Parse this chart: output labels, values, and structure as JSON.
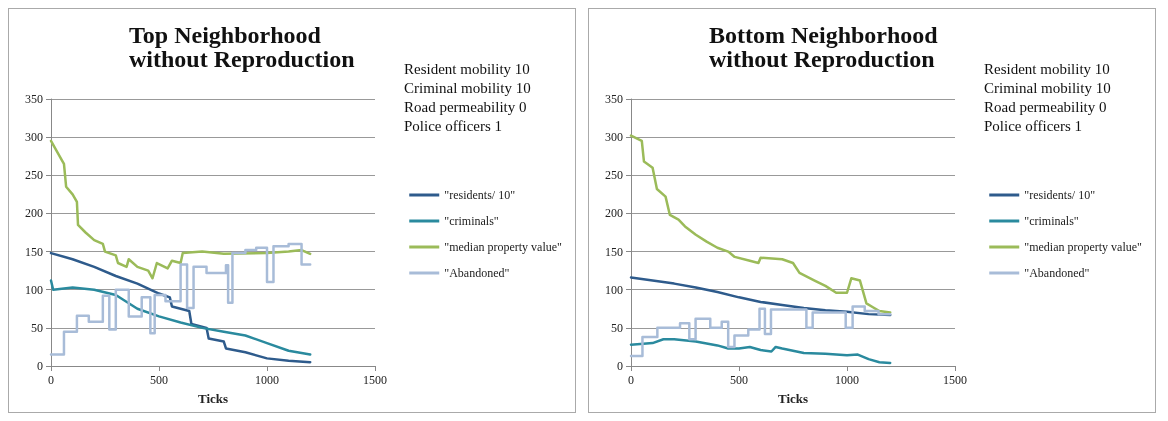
{
  "chart_data": [
    {
      "type": "line",
      "title": "Top Neighborhood  without Reproduction",
      "xlabel": "Ticks",
      "annotations": [
        "Resident mobility 10",
        "Criminal mobility 10",
        "Road permeability 0",
        "Police officers 1"
      ],
      "xlim": [
        0,
        1500
      ],
      "xticks": [
        0,
        500,
        1000,
        1500
      ],
      "ylim": [
        0,
        350
      ],
      "yticks": [
        0,
        50,
        100,
        150,
        200,
        250,
        300,
        350
      ],
      "grid": "y",
      "legend": "right",
      "marker": "none",
      "line_style": "solid",
      "series": [
        {
          "name": "\"residents/ 10\"",
          "color": "#2e5b8c",
          "x": [
            0,
            100,
            200,
            300,
            400,
            500,
            550,
            560,
            640,
            650,
            720,
            730,
            800,
            810,
            900,
            1000,
            1100,
            1200
          ],
          "values": [
            148,
            140,
            130,
            118,
            108,
            95,
            90,
            78,
            72,
            55,
            50,
            36,
            32,
            23,
            18,
            10,
            7,
            5
          ]
        },
        {
          "name": "\"criminals\"",
          "color": "#2a8a9e",
          "x": [
            0,
            10,
            100,
            200,
            300,
            400,
            500,
            600,
            700,
            800,
            900,
            1000,
            1100,
            1200
          ],
          "values": [
            112,
            100,
            103,
            100,
            93,
            75,
            65,
            57,
            50,
            45,
            40,
            30,
            20,
            15
          ]
        },
        {
          "name": "\"median property value\"",
          "color": "#9bbb59",
          "x": [
            0,
            50,
            60,
            70,
            100,
            120,
            125,
            160,
            200,
            240,
            250,
            300,
            310,
            350,
            360,
            400,
            450,
            470,
            490,
            540,
            560,
            600,
            610,
            700,
            800,
            1000,
            1100,
            1160,
            1200
          ],
          "values": [
            295,
            270,
            265,
            235,
            225,
            215,
            185,
            175,
            165,
            160,
            150,
            145,
            135,
            130,
            140,
            130,
            125,
            115,
            135,
            128,
            138,
            135,
            148,
            150,
            147,
            148,
            150,
            152,
            147
          ]
        },
        {
          "name": "\"Abandoned\"",
          "color": "#a8bcd8",
          "type": "step",
          "x": [
            0,
            60,
            120,
            175,
            240,
            270,
            300,
            360,
            420,
            460,
            480,
            530,
            600,
            630,
            660,
            720,
            810,
            820,
            840,
            900,
            950,
            1000,
            1030,
            1100,
            1160,
            1200
          ],
          "values": [
            15,
            45,
            66,
            58,
            92,
            48,
            100,
            65,
            90,
            43,
            93,
            85,
            133,
            76,
            130,
            122,
            132,
            83,
            148,
            152,
            155,
            110,
            157,
            160,
            133,
            133
          ]
        }
      ]
    },
    {
      "type": "line",
      "title": "Bottom Neighborhood  without Reproduction",
      "xlabel": "Ticks",
      "annotations": [
        "Resident mobility 10",
        "Criminal mobility 10",
        "Road permeability 0",
        "Police officers 1"
      ],
      "xlim": [
        0,
        1500
      ],
      "xticks": [
        0,
        500,
        1000,
        1500
      ],
      "ylim": [
        0,
        350
      ],
      "yticks": [
        0,
        50,
        100,
        150,
        200,
        250,
        300,
        350
      ],
      "grid": "y",
      "legend": "right",
      "marker": "none",
      "line_style": "solid",
      "series": [
        {
          "name": "\"residents/ 10\"",
          "color": "#2e5b8c",
          "x": [
            0,
            200,
            300,
            400,
            500,
            600,
            700,
            800,
            900,
            1000,
            1100,
            1200
          ],
          "values": [
            116,
            108,
            103,
            97,
            90,
            84,
            80,
            76,
            73,
            71,
            68,
            67
          ]
        },
        {
          "name": "\"criminals\"",
          "color": "#2a8a9e",
          "x": [
            0,
            100,
            150,
            200,
            300,
            400,
            450,
            500,
            550,
            600,
            650,
            670,
            700,
            800,
            900,
            1000,
            1050,
            1100,
            1150,
            1200
          ],
          "values": [
            28,
            30,
            35,
            35,
            32,
            27,
            23,
            23,
            25,
            21,
            19,
            25,
            23,
            17,
            16,
            14,
            15,
            9,
            5,
            4
          ]
        },
        {
          "name": "\"median property value\"",
          "color": "#9bbb59",
          "x": [
            0,
            50,
            60,
            100,
            120,
            160,
            180,
            220,
            250,
            300,
            350,
            400,
            450,
            480,
            550,
            590,
            600,
            700,
            750,
            780,
            850,
            900,
            950,
            1000,
            1020,
            1060,
            1090,
            1120,
            1150,
            1200
          ],
          "values": [
            302,
            295,
            268,
            260,
            232,
            222,
            198,
            192,
            183,
            172,
            163,
            155,
            150,
            143,
            138,
            135,
            142,
            140,
            135,
            122,
            112,
            105,
            96,
            96,
            115,
            112,
            82,
            77,
            72,
            70
          ]
        },
        {
          "name": "\"Abandoned\"",
          "color": "#a8bcd8",
          "type": "step",
          "x": [
            0,
            53,
            122,
            227,
            270,
            299,
            367,
            420,
            450,
            479,
            543,
            595,
            620,
            648,
            812,
            841,
            994,
            1026,
            1082,
            1146,
            1200
          ],
          "values": [
            13,
            38,
            50,
            56,
            35,
            62,
            50,
            58,
            25,
            40,
            48,
            75,
            42,
            74,
            50,
            70,
            50,
            78,
            72,
            68,
            68
          ]
        }
      ]
    }
  ]
}
